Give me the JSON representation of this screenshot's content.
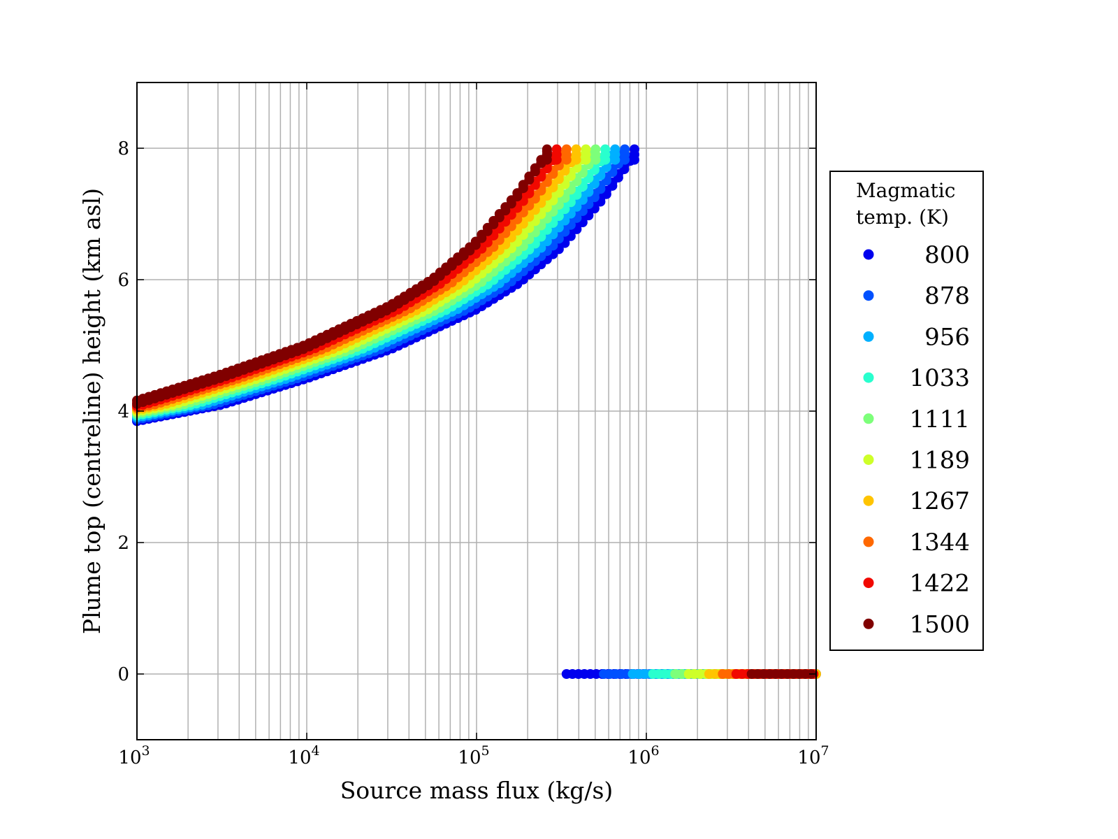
{
  "chart_data": {
    "type": "scatter",
    "title": "",
    "xlabel": "Source mass flux (kg/s)",
    "ylabel": "Plume top (centreline) height (km asl)",
    "xscale": "log",
    "xlim": [
      1000,
      10000000
    ],
    "ylim": [
      -1,
      9
    ],
    "grid": true,
    "x_ticks": [
      {
        "base": "10",
        "exp": "3",
        "value": 1000
      },
      {
        "base": "10",
        "exp": "4",
        "value": 10000
      },
      {
        "base": "10",
        "exp": "5",
        "value": 100000
      },
      {
        "base": "10",
        "exp": "6",
        "value": 1000000
      },
      {
        "base": "10",
        "exp": "7",
        "value": 10000000
      }
    ],
    "y_ticks": [
      {
        "label": "0",
        "value": 0
      },
      {
        "label": "2",
        "value": 2
      },
      {
        "label": "4",
        "value": 4
      },
      {
        "label": "6",
        "value": 6
      },
      {
        "label": "8",
        "value": 8
      }
    ],
    "legend": {
      "title_line1": "Magmatic",
      "title_line2": "temp. (K)",
      "placement": "outside-right"
    },
    "reference_curve_800K": {
      "log10_flux": [
        3.0,
        3.5,
        4.0,
        4.5,
        5.0,
        5.25,
        5.5,
        5.75,
        5.93
      ],
      "height_km": [
        3.9,
        4.15,
        4.55,
        5.0,
        5.6,
        6.0,
        6.55,
        7.3,
        7.95
      ]
    },
    "series": [
      {
        "name": "800",
        "color": "#0000ee",
        "flux_shift_decades": 0.0,
        "collapse_start_log10_flux": 5.53
      },
      {
        "name": "878",
        "color": "#0050ff",
        "flux_shift_decades": 0.057,
        "collapse_start_log10_flux": 5.75
      },
      {
        "name": "956",
        "color": "#00b0ff",
        "flux_shift_decades": 0.114,
        "collapse_start_log10_flux": 5.92
      },
      {
        "name": "1033",
        "color": "#29ffce",
        "flux_shift_decades": 0.172,
        "collapse_start_log10_flux": 6.04
      },
      {
        "name": "1111",
        "color": "#7dff7a",
        "flux_shift_decades": 0.229,
        "collapse_start_log10_flux": 6.17
      },
      {
        "name": "1189",
        "color": "#ceff29",
        "flux_shift_decades": 0.286,
        "collapse_start_log10_flux": 6.25
      },
      {
        "name": "1267",
        "color": "#ffc400",
        "flux_shift_decades": 0.343,
        "collapse_start_log10_flux": 6.37
      },
      {
        "name": "1344",
        "color": "#ff6800",
        "flux_shift_decades": 0.4,
        "collapse_start_log10_flux": 6.45
      },
      {
        "name": "1422",
        "color": "#f10800",
        "flux_shift_decades": 0.458,
        "collapse_start_log10_flux": 6.53
      },
      {
        "name": "1500",
        "color": "#800000",
        "flux_shift_decades": 0.515,
        "collapse_start_log10_flux": 6.62
      }
    ]
  }
}
